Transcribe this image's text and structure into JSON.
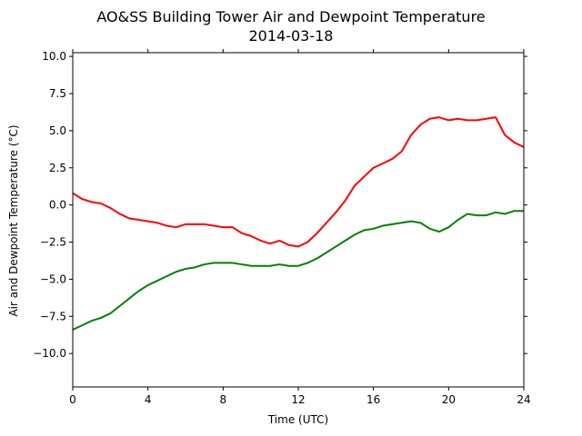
{
  "chart_data": {
    "type": "line",
    "title": "AO&SS Building Tower Air and Dewpoint Temperature",
    "subtitle": "2014-03-18",
    "xlabel": "Time (UTC)",
    "ylabel": "Air and Dewpoint Temperature (°C)",
    "xlim": [
      0,
      24
    ],
    "ylim": [
      -12.25,
      10.25
    ],
    "xticks": [
      0,
      4,
      8,
      12,
      16,
      20,
      24
    ],
    "yticks": [
      -10.0,
      -7.5,
      -5.0,
      -2.5,
      0.0,
      2.5,
      5.0,
      7.5,
      10.0
    ],
    "xtick_labels": [
      "0",
      "4",
      "8",
      "12",
      "16",
      "20",
      "24"
    ],
    "ytick_labels": [
      "−10.0",
      "−7.5",
      "−5.0",
      "−2.5",
      "0.0",
      "2.5",
      "5.0",
      "7.5",
      "10.0"
    ],
    "grid": false,
    "series": [
      {
        "color": "#ff0000",
        "x": [
          0,
          0.5,
          1,
          1.5,
          2,
          2.5,
          3,
          3.5,
          4,
          4.5,
          5,
          5.5,
          6,
          6.5,
          7,
          7.5,
          8,
          8.5,
          9,
          9.5,
          10,
          10.5,
          11,
          11.5,
          12,
          12.5,
          13,
          13.5,
          14,
          14.5,
          15,
          15.5,
          16,
          16.5,
          17,
          17.5,
          18,
          18.5,
          19,
          19.5,
          20,
          20.5,
          21,
          21.5,
          22,
          22.5,
          23,
          23.5,
          24
        ],
        "values": [
          0.8,
          0.4,
          0.2,
          0.1,
          -0.2,
          -0.6,
          -0.9,
          -1.0,
          -1.1,
          -1.2,
          -1.4,
          -1.5,
          -1.3,
          -1.3,
          -1.3,
          -1.4,
          -1.5,
          -1.5,
          -1.9,
          -2.1,
          -2.4,
          -2.6,
          -2.4,
          -2.7,
          -2.8,
          -2.5,
          -1.9,
          -1.2,
          -0.5,
          0.3,
          1.3,
          1.9,
          2.5,
          2.8,
          3.1,
          3.6,
          4.7,
          5.4,
          5.8,
          5.9,
          5.7,
          5.8,
          5.7,
          5.7,
          5.8,
          5.9,
          4.7,
          4.2,
          3.9
        ]
      },
      {
        "color": "#008000",
        "x": [
          0,
          0.5,
          1,
          1.5,
          2,
          2.5,
          3,
          3.5,
          4,
          4.5,
          5,
          5.5,
          6,
          6.5,
          7,
          7.5,
          8,
          8.5,
          9,
          9.5,
          10,
          10.5,
          11,
          11.5,
          12,
          12.5,
          13,
          13.5,
          14,
          14.5,
          15,
          15.5,
          16,
          16.5,
          17,
          17.5,
          18,
          18.5,
          19,
          19.5,
          20,
          20.5,
          21,
          21.5,
          22,
          22.5,
          23,
          23.5,
          24
        ],
        "values": [
          -8.4,
          -8.1,
          -7.8,
          -7.6,
          -7.3,
          -6.8,
          -6.3,
          -5.8,
          -5.4,
          -5.1,
          -4.8,
          -4.5,
          -4.3,
          -4.2,
          -4.0,
          -3.9,
          -3.9,
          -3.9,
          -4.0,
          -4.1,
          -4.1,
          -4.1,
          -4.0,
          -4.1,
          -4.1,
          -3.9,
          -3.6,
          -3.2,
          -2.8,
          -2.4,
          -2.0,
          -1.7,
          -1.6,
          -1.4,
          -1.3,
          -1.2,
          -1.1,
          -1.2,
          -1.6,
          -1.8,
          -1.5,
          -1.0,
          -0.6,
          -0.7,
          -0.7,
          -0.5,
          -0.6,
          -0.4,
          -0.4
        ]
      }
    ]
  }
}
